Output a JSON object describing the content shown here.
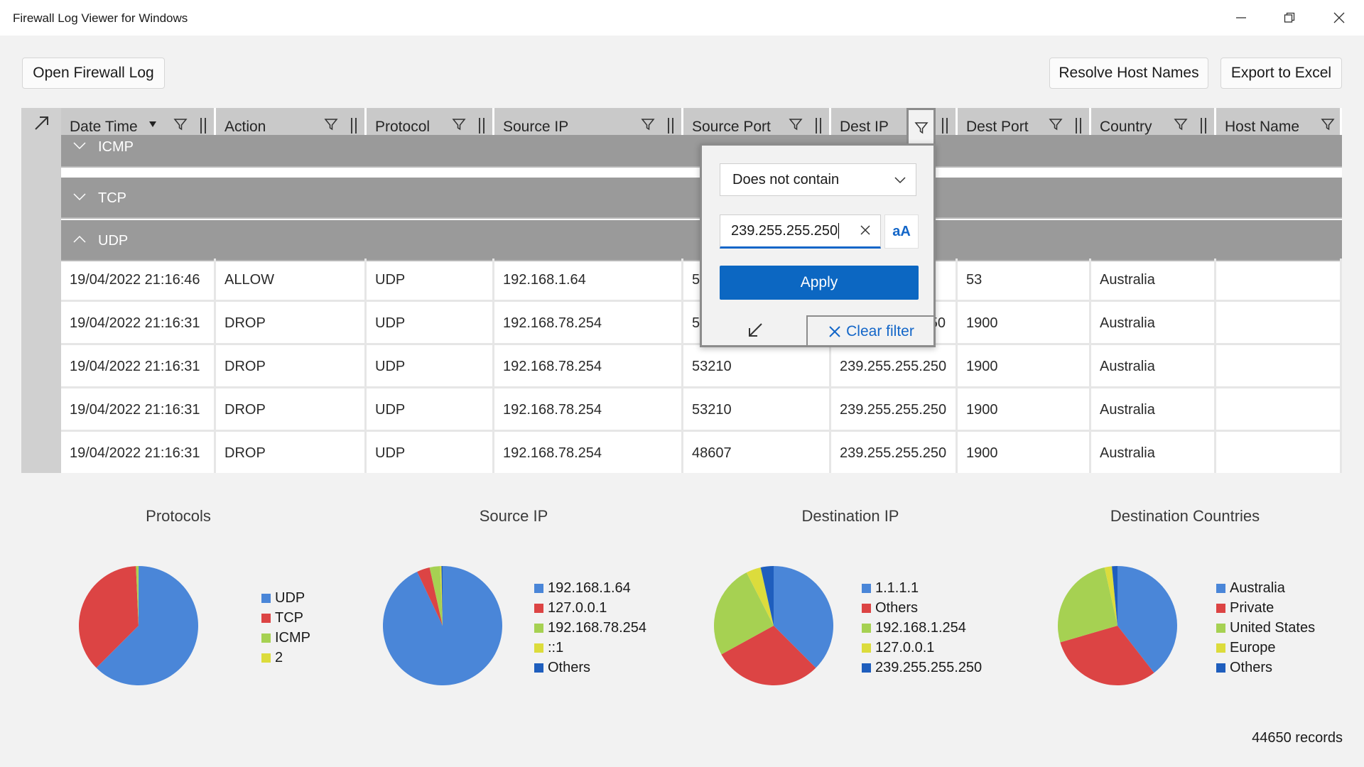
{
  "window": {
    "title": "Firewall Log Viewer for Windows"
  },
  "toolbar": {
    "open_label": "Open Firewall Log",
    "resolve_label": "Resolve Host Names",
    "export_label": "Export to Excel"
  },
  "grid": {
    "columns": [
      "Date Time",
      "Action",
      "Protocol",
      "Source IP",
      "Source Port",
      "Dest IP",
      "Dest Port",
      "Country",
      "Host Name"
    ],
    "groups": [
      "ICMP",
      "TCP",
      "UDP"
    ],
    "rows": [
      [
        "19/04/2022 21:16:46",
        "ALLOW",
        "UDP",
        "192.168.1.64",
        "5",
        "",
        "53",
        "Australia",
        ""
      ],
      [
        "19/04/2022 21:16:31",
        "DROP",
        "UDP",
        "192.168.78.254",
        "5",
        "50",
        "1900",
        "Australia",
        ""
      ],
      [
        "19/04/2022 21:16:31",
        "DROP",
        "UDP",
        "192.168.78.254",
        "53210",
        "239.255.255.250",
        "1900",
        "Australia",
        ""
      ],
      [
        "19/04/2022 21:16:31",
        "DROP",
        "UDP",
        "192.168.78.254",
        "53210",
        "239.255.255.250",
        "1900",
        "Australia",
        ""
      ],
      [
        "19/04/2022 21:16:31",
        "DROP",
        "UDP",
        "192.168.78.254",
        "48607",
        "239.255.255.250",
        "1900",
        "Australia",
        ""
      ]
    ]
  },
  "filter_popup": {
    "condition": "Does not contain",
    "value": "239.255.255.250",
    "case_label": "aA",
    "apply_label": "Apply",
    "clear_label": "Clear filter"
  },
  "chart_data": [
    {
      "type": "pie",
      "title": "Protocols",
      "labels": [
        "UDP",
        "TCP",
        "ICMP",
        "2"
      ],
      "values": [
        62.5,
        36.8,
        0.6,
        0.1
      ],
      "colors": [
        "#4a86d8",
        "#dc4444",
        "#a6d152",
        "#dcdc3c"
      ]
    },
    {
      "type": "pie",
      "title": "Source IP",
      "labels": [
        "192.168.1.64",
        "127.0.0.1",
        "192.168.78.254",
        "::1",
        "Others"
      ],
      "values": [
        93.0,
        3.5,
        2.8,
        0.4,
        0.3
      ],
      "colors": [
        "#4a86d8",
        "#dc4444",
        "#a6d152",
        "#dcdc3c",
        "#1f5ebd"
      ]
    },
    {
      "type": "pie",
      "title": "Destination IP",
      "labels": [
        "1.1.1.1",
        "Others",
        "192.168.1.254",
        "127.0.0.1",
        "239.255.255.250"
      ],
      "values": [
        37.5,
        29.5,
        25.5,
        4.0,
        3.5
      ],
      "colors": [
        "#4a86d8",
        "#dc4444",
        "#a6d152",
        "#dcdc3c",
        "#1f5ebd"
      ]
    },
    {
      "type": "pie",
      "title": "Destination Countries",
      "labels": [
        "Australia",
        "Private",
        "United States",
        "Europe",
        "Others"
      ],
      "values": [
        39.5,
        31.0,
        26.0,
        2.0,
        1.5
      ],
      "colors": [
        "#4a86d8",
        "#dc4444",
        "#a6d152",
        "#dcdc3c",
        "#1f5ebd"
      ]
    }
  ],
  "status": {
    "records": "44650 records"
  }
}
